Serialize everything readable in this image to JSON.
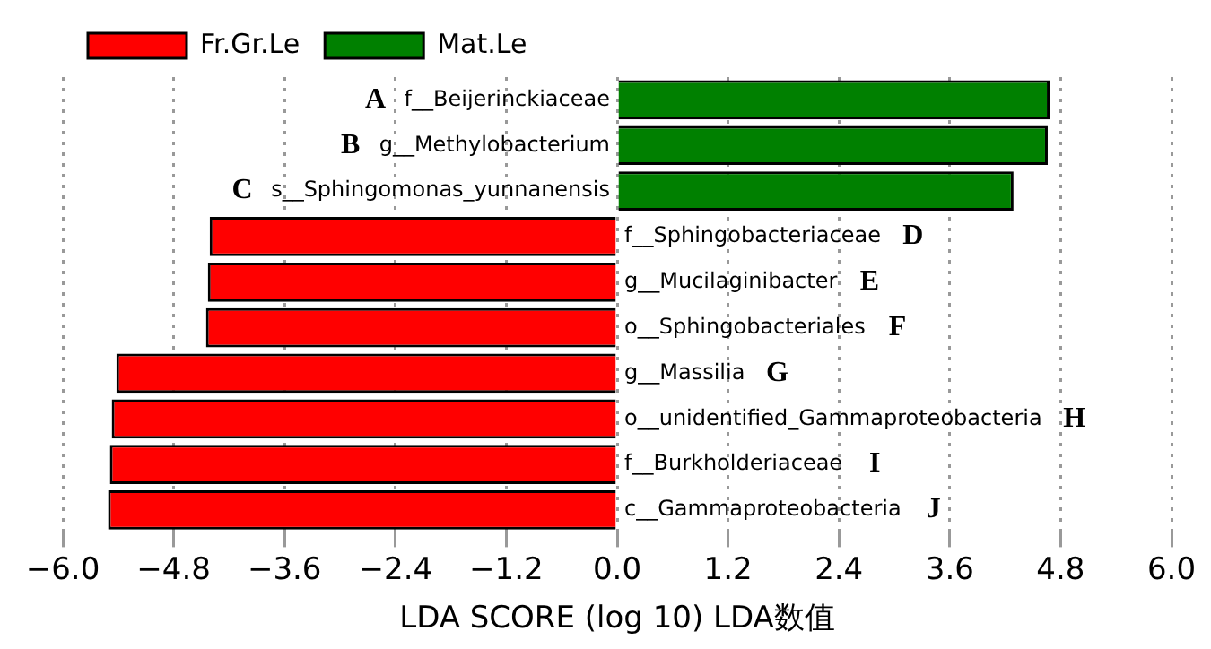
{
  "chart_data": {
    "type": "bar",
    "orientation": "horizontal",
    "xlabel": "LDA SCORE (log 10) LDA数值",
    "categories": [
      "f__Beijerinckiaceae",
      "g__Methylobacterium",
      "s__Sphingomonas_yunnanensis",
      "f__Sphingobacteriaceae",
      "g__Mucilaginibacter",
      "o__Sphingobacteriales",
      "g__Massilia",
      "o__unidentified_Gammaproteobacteria",
      "f__Burkholderiaceae",
      "c__Gammaproteobacteria"
    ],
    "series": [
      {
        "name": "Fr.Gr.Le",
        "color": "#ff0000",
        "values": [
          null,
          null,
          null,
          -4.41,
          -4.43,
          -4.45,
          -5.42,
          -5.47,
          -5.49,
          -5.51
        ]
      },
      {
        "name": "Mat.Le",
        "color": "#008000",
        "values": [
          4.68,
          4.66,
          4.29,
          null,
          null,
          null,
          null,
          null,
          null,
          null
        ]
      }
    ],
    "xlim": [
      -6.0,
      6.0
    ],
    "xticks": [
      {
        "value": -6,
        "label": "−6.0"
      },
      {
        "value": -4.8,
        "label": "−4.8"
      },
      {
        "value": -3.6,
        "label": "−3.6"
      },
      {
        "value": -2.4,
        "label": "−2.4"
      },
      {
        "value": -1.2,
        "label": "−1.2"
      },
      {
        "value": 0,
        "label": "0.0"
      },
      {
        "value": 1.2,
        "label": "1.2"
      },
      {
        "value": 2.4,
        "label": "2.4"
      },
      {
        "value": 3.6,
        "label": "3.6"
      },
      {
        "value": 4.8,
        "label": "4.8"
      },
      {
        "value": 6,
        "label": "6.0"
      }
    ],
    "grid": "x",
    "legend": "top left",
    "tick_labels": "x",
    "annotations": [
      "A",
      "B",
      "C",
      "D",
      "E",
      "F",
      "G",
      "H",
      "I",
      "J"
    ]
  }
}
